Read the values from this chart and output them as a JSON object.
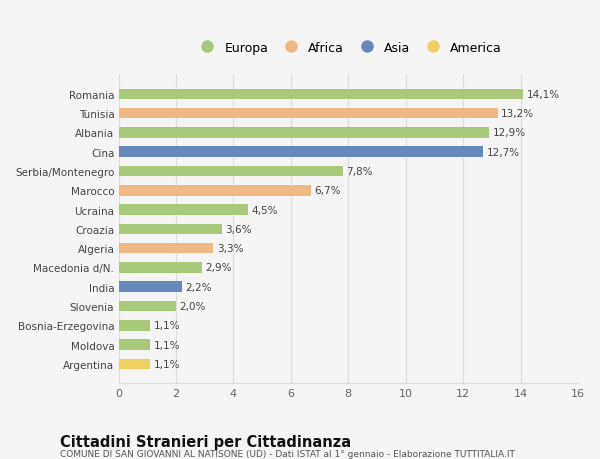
{
  "title": "Cittadini Stranieri per Cittadinanza",
  "subtitle": "COMUNE DI SAN GIOVANNI AL NATISONE (UD) - Dati ISTAT al 1° gennaio - Elaborazione TUTTITALIA.IT",
  "categories": [
    "Romania",
    "Tunisia",
    "Albania",
    "Cina",
    "Serbia/Montenegro",
    "Marocco",
    "Ucraina",
    "Croazia",
    "Algeria",
    "Macedonia d/N.",
    "India",
    "Slovenia",
    "Bosnia-Erzegovina",
    "Moldova",
    "Argentina"
  ],
  "values": [
    14.1,
    13.2,
    12.9,
    12.7,
    7.8,
    6.7,
    4.5,
    3.6,
    3.3,
    2.9,
    2.2,
    2.0,
    1.1,
    1.1,
    1.1
  ],
  "labels": [
    "14,1%",
    "13,2%",
    "12,9%",
    "12,7%",
    "7,8%",
    "6,7%",
    "4,5%",
    "3,6%",
    "3,3%",
    "2,9%",
    "2,2%",
    "2,0%",
    "1,1%",
    "1,1%",
    "1,1%"
  ],
  "colors": [
    "#a8c87a",
    "#f0b882",
    "#a8c87a",
    "#6688bb",
    "#a8c87a",
    "#f0b882",
    "#a8c87a",
    "#a8c87a",
    "#f0b882",
    "#a8c87a",
    "#6688bb",
    "#a8c87a",
    "#a8c87a",
    "#a8c87a",
    "#f0d060"
  ],
  "legend_labels": [
    "Europa",
    "Africa",
    "Asia",
    "America"
  ],
  "legend_colors": [
    "#a8c87a",
    "#f0b882",
    "#6688bb",
    "#f0d060"
  ],
  "xlim": [
    0,
    16
  ],
  "xticks": [
    0,
    2,
    4,
    6,
    8,
    10,
    12,
    14,
    16
  ],
  "bg_color": "#f5f5f5",
  "bar_height": 0.55,
  "grid_color": "#dddddd",
  "label_fontsize": 7.5,
  "ytick_fontsize": 7.5,
  "xtick_fontsize": 8.0,
  "legend_fontsize": 9.0,
  "title_fontsize": 10.5,
  "subtitle_fontsize": 6.5
}
